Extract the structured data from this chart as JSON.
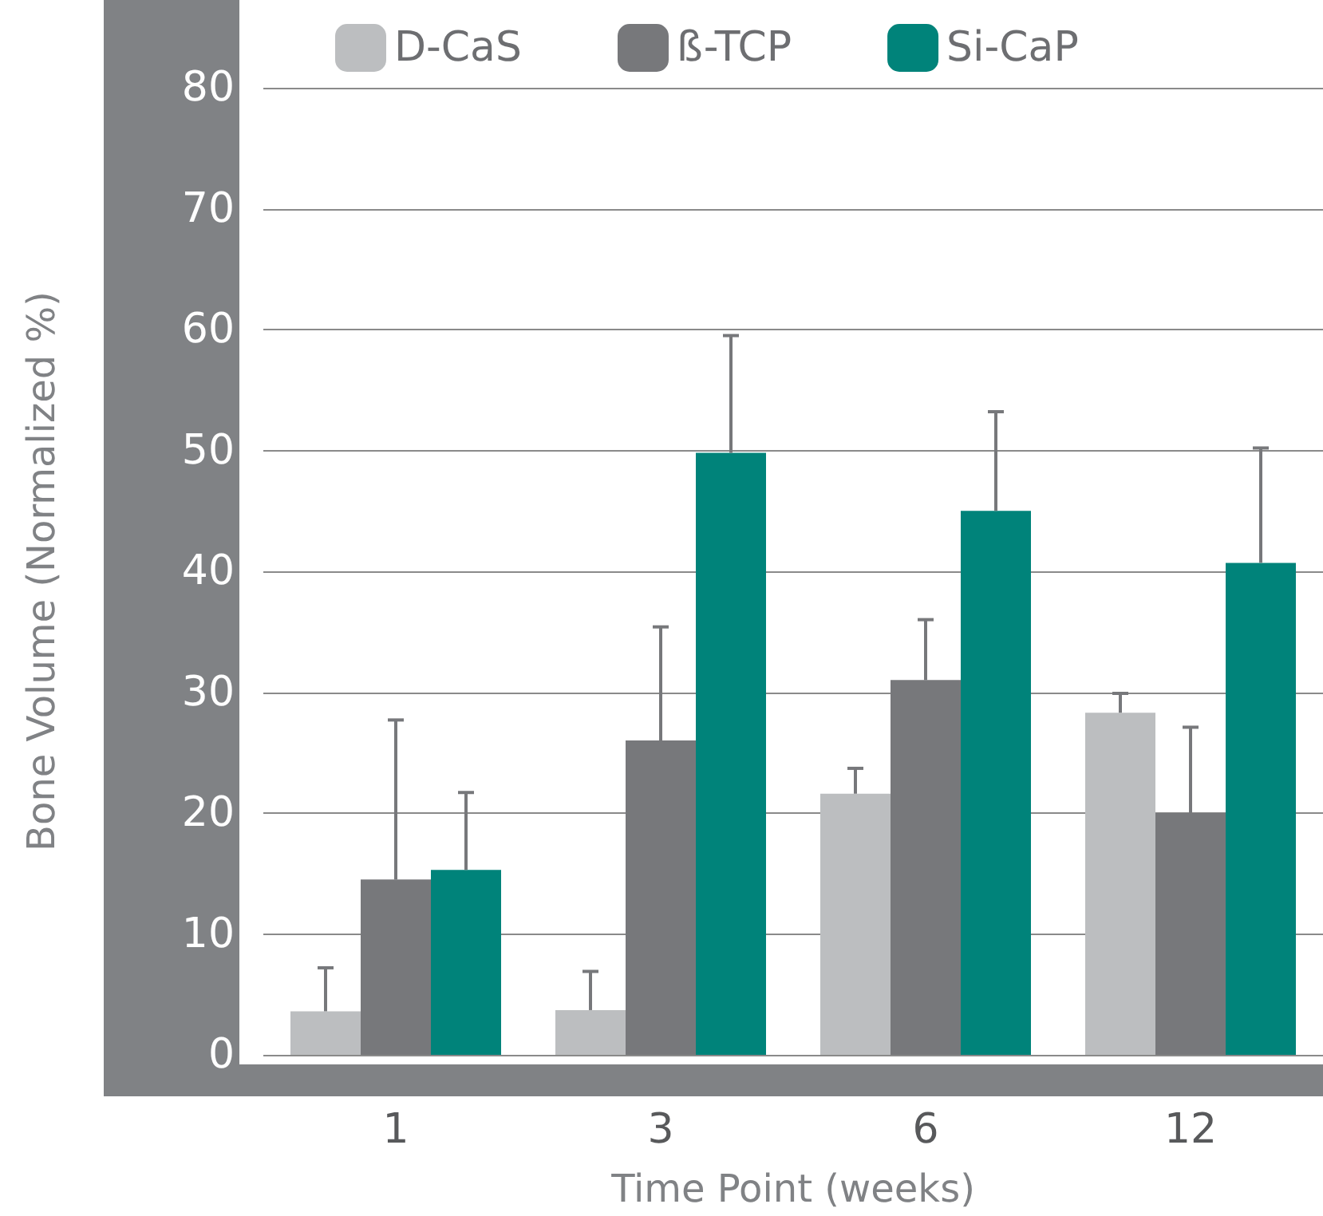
{
  "chart_data": {
    "type": "bar",
    "xlabel": "Time Point (weeks)",
    "ylabel": "Bone Volume (Normalized %)",
    "categories": [
      "1",
      "3",
      "6",
      "12"
    ],
    "series": [
      {
        "name": "D-CaS",
        "color": "#bcbec0",
        "values": [
          3.6,
          3.7,
          21.6,
          28.3
        ],
        "errors": [
          [
            3.6,
            7.2
          ],
          [
            3.7,
            6.9
          ],
          [
            21.6,
            23.7
          ],
          [
            28.3,
            29.9
          ]
        ]
      },
      {
        "name": "ß-TCP",
        "color": "#77787b",
        "values": [
          14.5,
          26,
          31,
          20
        ],
        "errors": [
          [
            14.5,
            27.7
          ],
          [
            26,
            35.4
          ],
          [
            31,
            36
          ],
          [
            20,
            27.1
          ]
        ]
      },
      {
        "name": "Si-CaP",
        "color": "#00837a",
        "values": [
          15.3,
          49.8,
          45,
          40.7
        ],
        "errors": [
          [
            15.3,
            21.7
          ],
          [
            49.8,
            59.5
          ],
          [
            45,
            53.2
          ],
          [
            40.7,
            50.2
          ]
        ]
      }
    ],
    "ylim": [
      0,
      80
    ],
    "yticks": [
      0,
      10,
      20,
      30,
      40,
      50,
      60,
      70,
      80
    ],
    "grid": "y",
    "legend": "top"
  }
}
